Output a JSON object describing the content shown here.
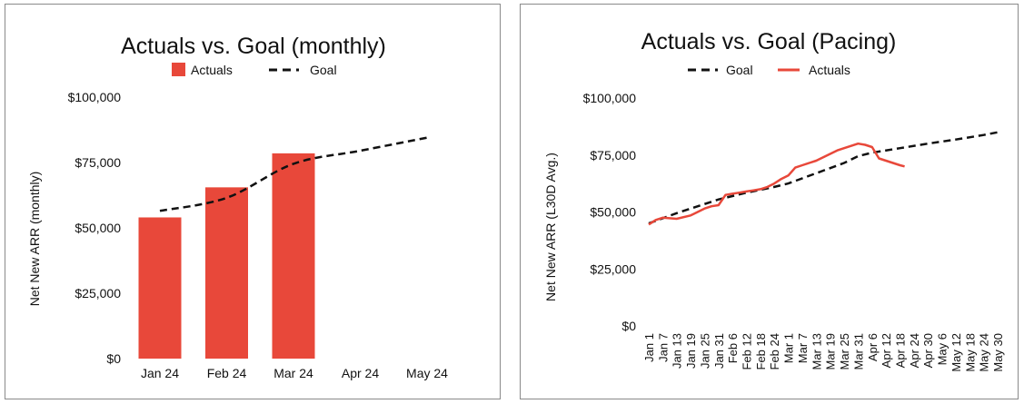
{
  "charts": [
    {
      "title": "Actuals vs. Goal (monthly)",
      "legend": [
        {
          "label": "Actuals",
          "style": "bar"
        },
        {
          "label": "Goal",
          "style": "dash"
        }
      ],
      "ylabel": "Net New ARR (monthly)"
    },
    {
      "title": "Actuals vs. Goal (Pacing)",
      "legend": [
        {
          "label": "Goal",
          "style": "dash"
        },
        {
          "label": "Actuals",
          "style": "line"
        }
      ],
      "ylabel": "Net New ARR (L30D Avg.)"
    }
  ],
  "colors": {
    "actuals": "#e8483a",
    "goal": "#111111",
    "axis_text": "#111111",
    "border": "#8a8a8a"
  },
  "chart_data": [
    {
      "type": "bar",
      "title": "Actuals vs. Goal (monthly)",
      "ylabel": "Net New ARR (monthly)",
      "categories": [
        "Jan 24",
        "Feb 24",
        "Mar 24",
        "Apr 24",
        "May 24"
      ],
      "ylim": [
        0,
        100000
      ],
      "yticks": [
        "$0",
        "$25,000",
        "$50,000",
        "$75,000",
        "$100,000"
      ],
      "yticks_values": [
        0,
        25000,
        50000,
        75000,
        100000
      ],
      "series": [
        {
          "name": "Actuals",
          "type": "bar",
          "values": [
            54000,
            65500,
            78500,
            null,
            null
          ]
        },
        {
          "name": "Goal",
          "type": "line",
          "values": [
            56500,
            61500,
            74500,
            79500,
            84500
          ]
        }
      ],
      "grid": false,
      "legend_position": "top-center"
    },
    {
      "type": "line",
      "title": "Actuals vs. Goal (Pacing)",
      "ylabel": "Net New ARR (L30D Avg.)",
      "xticks": [
        "Jan 1",
        "Jan 7",
        "Jan 13",
        "Jan 19",
        "Jan 25",
        "Jan 31",
        "Feb 6",
        "Feb 12",
        "Feb 18",
        "Feb 24",
        "Mar 1",
        "Mar 7",
        "Mar 13",
        "Mar 19",
        "Mar 25",
        "Mar 31",
        "Apr 6",
        "Apr 12",
        "Apr 18",
        "Apr 24",
        "Apr 30",
        "May 6",
        "May 12",
        "May 18",
        "May 24",
        "May 30"
      ],
      "ylim": [
        0,
        100000
      ],
      "yticks": [
        "$0",
        "$25,000",
        "$50,000",
        "$75,000",
        "$100,000"
      ],
      "yticks_values": [
        0,
        25000,
        50000,
        75000,
        100000
      ],
      "series": [
        {
          "name": "Goal",
          "x": [
            "Jan 1",
            "Jan 13",
            "Jan 31",
            "Feb 12",
            "Feb 24",
            "Mar 1",
            "Mar 13",
            "Mar 25",
            "Mar 31",
            "Apr 6",
            "Apr 18",
            "Apr 30",
            "May 12",
            "May 24",
            "May 30"
          ],
          "values": [
            45000,
            49500,
            55500,
            58500,
            61000,
            62500,
            67000,
            71500,
            74500,
            76000,
            78000,
            80000,
            81800,
            83800,
            85000
          ]
        },
        {
          "name": "Actuals",
          "x": [
            "Jan 1",
            "Jan 4",
            "Jan 7",
            "Jan 13",
            "Jan 19",
            "Jan 22",
            "Jan 25",
            "Jan 28",
            "Jan 31",
            "Feb 3",
            "Feb 6",
            "Feb 9",
            "Feb 12",
            "Feb 15",
            "Feb 18",
            "Feb 21",
            "Feb 24",
            "Feb 27",
            "Mar 1",
            "Mar 4",
            "Mar 7",
            "Mar 10",
            "Mar 13",
            "Mar 16",
            "Mar 19",
            "Mar 22",
            "Mar 25",
            "Mar 28",
            "Mar 31",
            "Apr 3",
            "Apr 6",
            "Apr 9",
            "Apr 12",
            "Apr 15",
            "Apr 18",
            "Apr 20"
          ],
          "values": [
            44500,
            46500,
            47500,
            47000,
            48500,
            50000,
            51500,
            52500,
            53000,
            57500,
            58000,
            58500,
            59000,
            59500,
            60000,
            61000,
            62500,
            64500,
            66000,
            69500,
            70500,
            71500,
            72500,
            74000,
            75500,
            77000,
            78000,
            79000,
            80000,
            79500,
            78500,
            73500,
            72500,
            71500,
            70500,
            70000
          ]
        }
      ],
      "grid": false,
      "legend_position": "top-center"
    }
  ]
}
